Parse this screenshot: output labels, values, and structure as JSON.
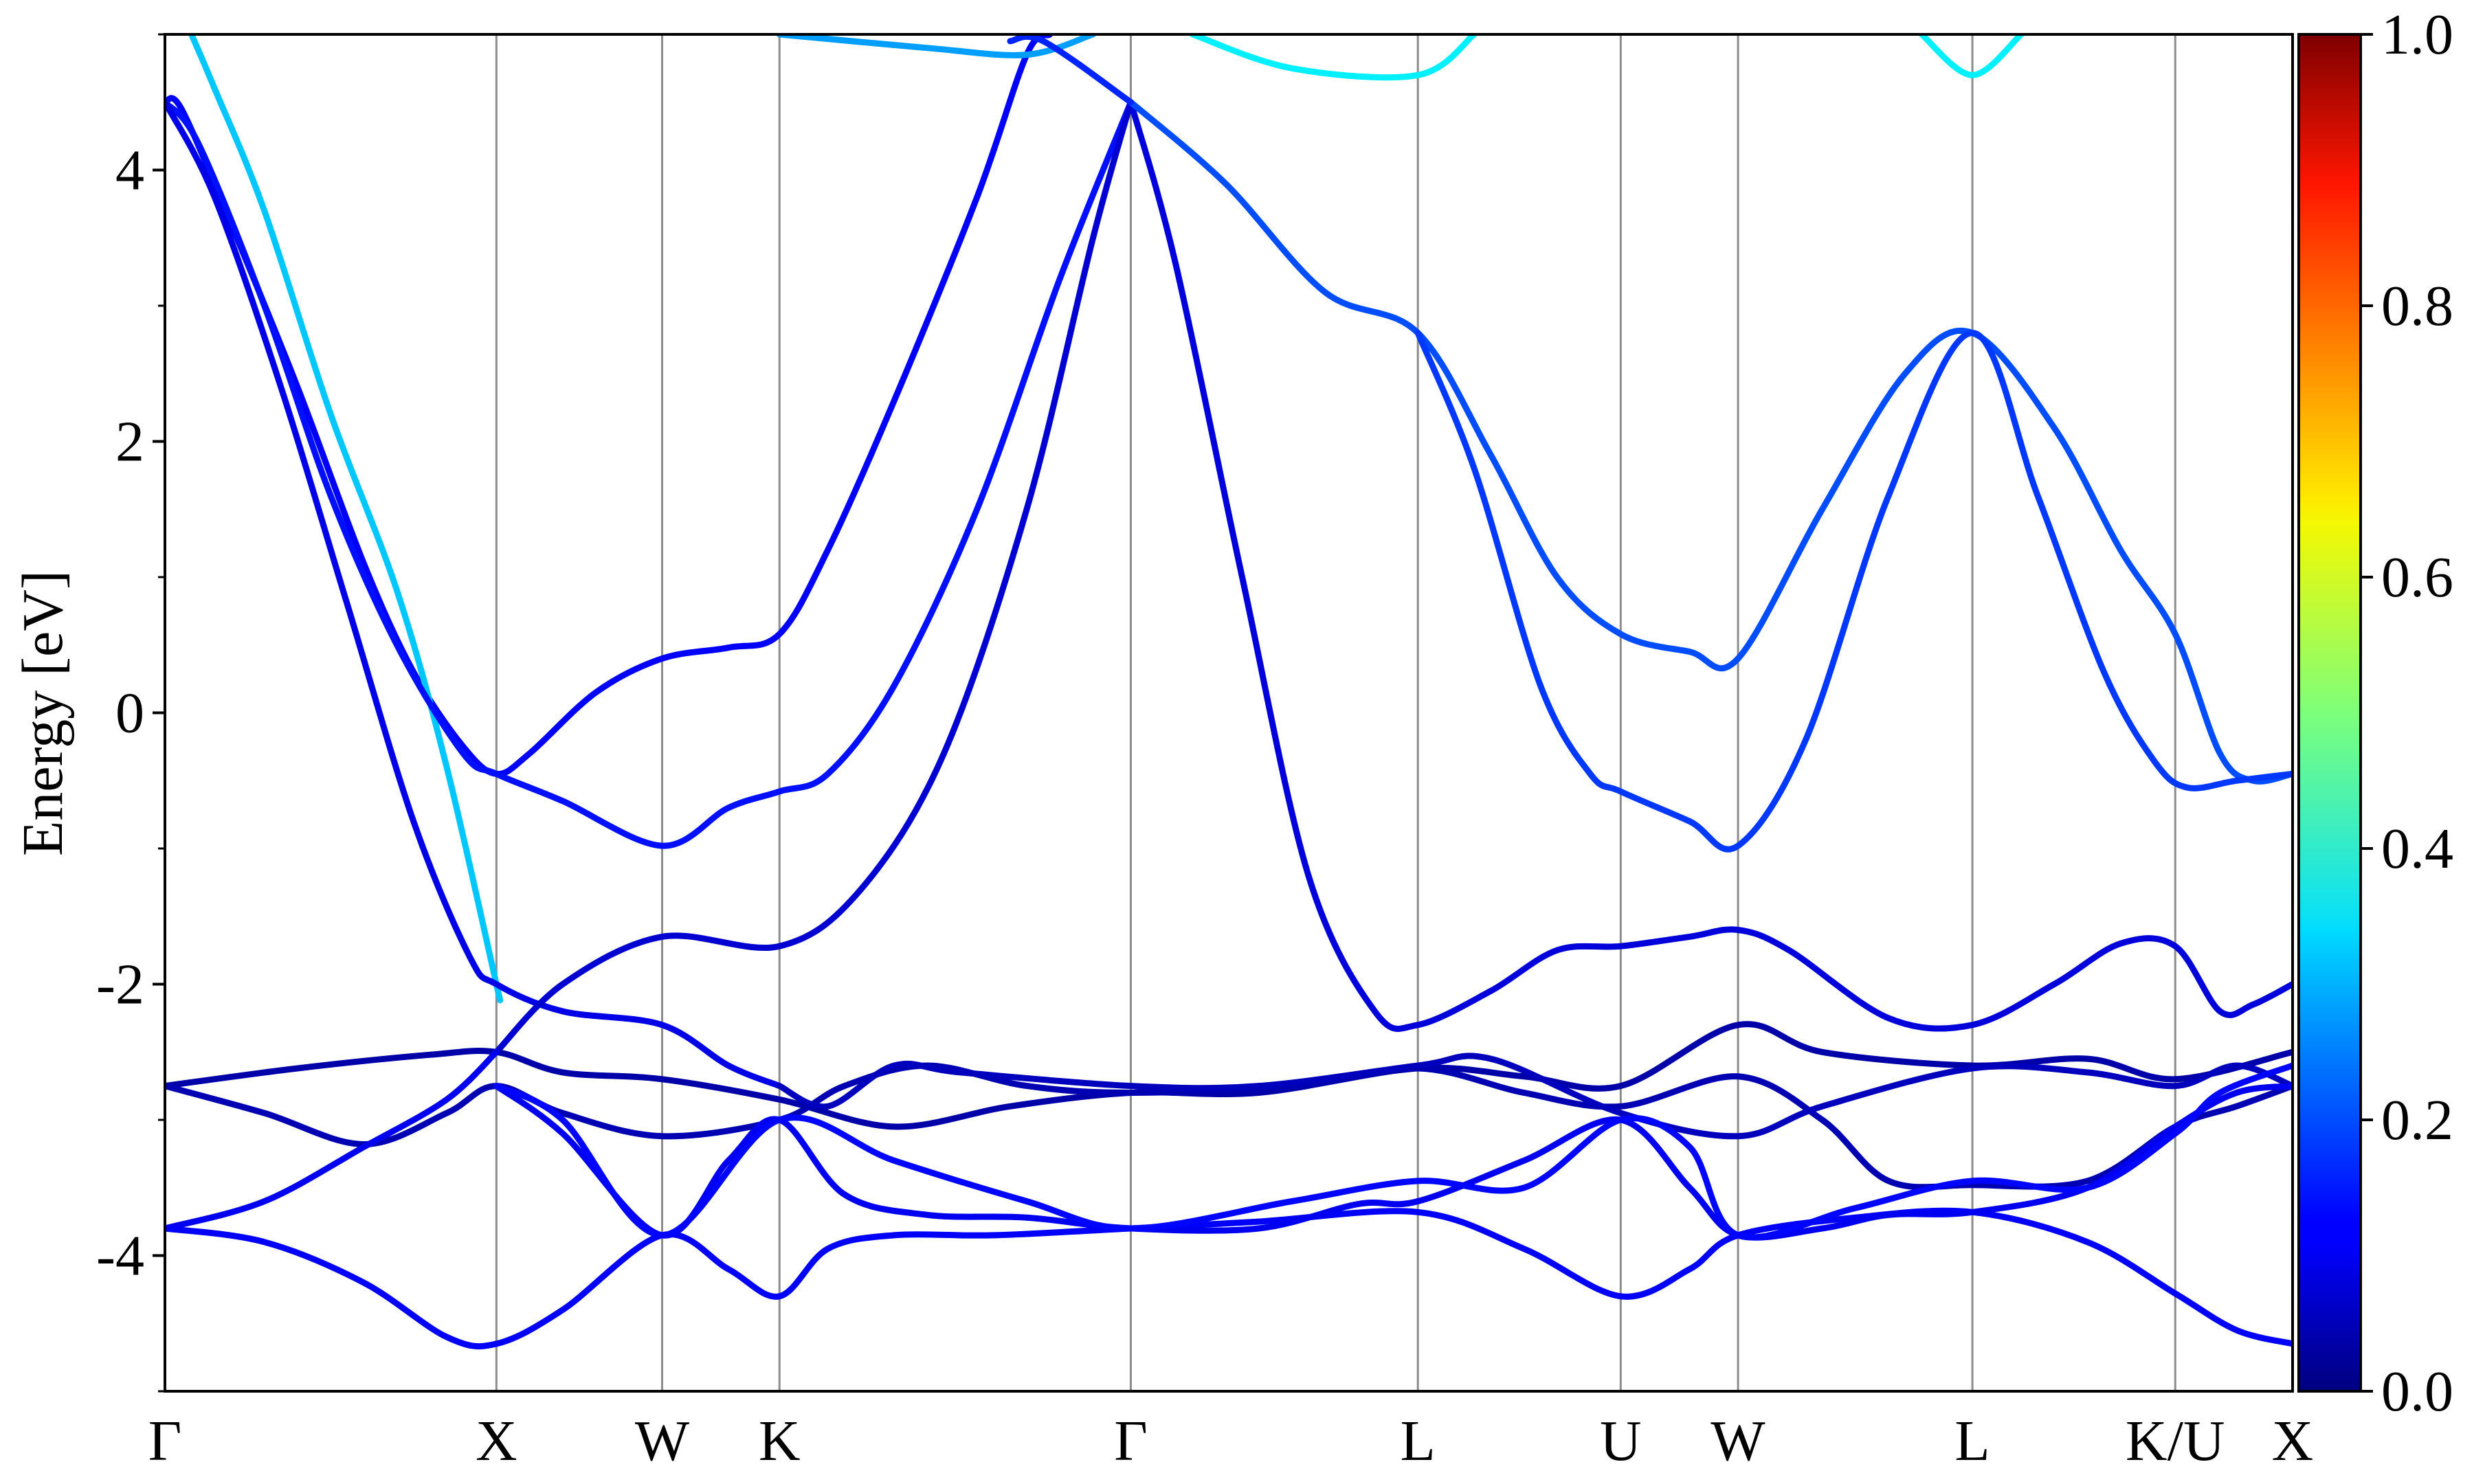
{
  "chart_data": {
    "type": "line",
    "title": "",
    "xlabel": "",
    "ylabel": "Energy [eV]",
    "ylim": [
      -5,
      5
    ],
    "yticks": [
      -4,
      -2,
      0,
      2,
      4
    ],
    "ytick_labels": [
      "-4",
      "-2",
      "0",
      "2",
      "4"
    ],
    "grid": "vertical lines at high-symmetry points",
    "legend": "none",
    "high_symmetry_points": [
      {
        "label": "Γ",
        "x": 0.0
      },
      {
        "label": "X",
        "x": 1.0
      },
      {
        "label": "W",
        "x": 1.5
      },
      {
        "label": "K",
        "x": 1.854
      },
      {
        "label": "Γ",
        "x": 2.914
      },
      {
        "label": "L",
        "x": 3.78
      },
      {
        "label": "U",
        "x": 4.392
      },
      {
        "label": "W",
        "x": 4.746
      },
      {
        "label": "L",
        "x": 5.453
      },
      {
        "label": "K/U",
        "x": 6.065
      },
      {
        "label": "X",
        "x": 6.419
      }
    ],
    "colorbar": {
      "colormap": "jet",
      "range": [
        0.0,
        1.0
      ],
      "ticks": [
        0.0,
        0.2,
        0.4,
        0.6,
        0.8,
        1.0
      ],
      "tick_labels": [
        "0.0",
        "0.2",
        "0.4",
        "0.6",
        "0.8",
        "1.0"
      ]
    },
    "series": [
      {
        "weight": 0.12,
        "points": [
          [
            0.0,
            4.5
          ],
          [
            0.05,
            4.45
          ],
          [
            0.2,
            3.6
          ],
          [
            0.4,
            2.4
          ],
          [
            0.6,
            1.1
          ],
          [
            0.75,
            0.3
          ],
          [
            0.9,
            -0.25
          ],
          [
            1.0,
            -0.45
          ],
          [
            1.1,
            -0.3
          ],
          [
            1.3,
            0.15
          ],
          [
            1.5,
            0.4
          ],
          [
            1.7,
            0.48
          ],
          [
            1.854,
            0.58
          ],
          [
            2.0,
            1.2
          ],
          [
            2.2,
            2.3
          ],
          [
            2.45,
            3.8
          ],
          [
            2.6,
            4.85
          ],
          [
            2.67,
            5.0
          ]
        ]
      },
      {
        "weight": 0.32,
        "points": [
          [
            0.08,
            5.0
          ],
          [
            0.15,
            4.6
          ],
          [
            0.3,
            3.7
          ],
          [
            0.5,
            2.2
          ],
          [
            0.7,
            0.9
          ],
          [
            0.85,
            -0.4
          ],
          [
            1.0,
            -2.0
          ],
          [
            1.0,
            -2.0
          ]
        ]
      },
      {
        "weight": 0.14,
        "points": [
          [
            0.0,
            4.5
          ],
          [
            0.1,
            4.2
          ],
          [
            0.3,
            3.0
          ],
          [
            0.5,
            1.6
          ],
          [
            0.7,
            0.5
          ],
          [
            0.9,
            -0.3
          ],
          [
            1.0,
            -0.45
          ],
          [
            1.2,
            -0.65
          ],
          [
            1.5,
            -0.98
          ],
          [
            1.7,
            -0.7
          ],
          [
            1.854,
            -0.58
          ],
          [
            2.0,
            -0.45
          ],
          [
            2.2,
            0.2
          ],
          [
            2.45,
            1.5
          ],
          [
            2.7,
            3.2
          ],
          [
            2.914,
            4.5
          ]
        ]
      },
      {
        "weight": 0.1,
        "points": [
          [
            0.0,
            4.5
          ],
          [
            0.15,
            3.8
          ],
          [
            0.35,
            2.4
          ],
          [
            0.55,
            0.8
          ],
          [
            0.75,
            -0.8
          ],
          [
            0.92,
            -1.8
          ],
          [
            1.0,
            -2.0
          ],
          [
            1.2,
            -2.2
          ],
          [
            1.5,
            -2.3
          ],
          [
            1.7,
            -2.6
          ],
          [
            1.854,
            -2.75
          ]
        ]
      },
      {
        "weight": 0.08,
        "points": [
          [
            1.0,
            -2.5
          ],
          [
            1.2,
            -2.0
          ],
          [
            1.5,
            -1.65
          ],
          [
            1.854,
            -1.72
          ],
          [
            2.1,
            -1.3
          ],
          [
            2.35,
            -0.3
          ],
          [
            2.6,
            1.5
          ],
          [
            2.8,
            3.5
          ],
          [
            2.914,
            4.5
          ]
        ]
      },
      {
        "weight": 0.09,
        "points": [
          [
            2.914,
            4.5
          ],
          [
            3.05,
            3.3
          ],
          [
            3.25,
            1.0
          ],
          [
            3.45,
            -1.2
          ],
          [
            3.65,
            -2.2
          ],
          [
            3.78,
            -2.3
          ],
          [
            4.0,
            -2.05
          ],
          [
            4.2,
            -1.75
          ],
          [
            4.392,
            -1.72
          ],
          [
            4.6,
            -1.65
          ],
          [
            4.746,
            -1.6
          ],
          [
            4.9,
            -1.75
          ],
          [
            5.2,
            -2.25
          ],
          [
            5.453,
            -2.3
          ],
          [
            5.7,
            -2.0
          ],
          [
            5.9,
            -1.7
          ],
          [
            6.065,
            -1.72
          ],
          [
            6.2,
            -2.2
          ],
          [
            6.3,
            -2.15
          ],
          [
            6.419,
            -2.0
          ]
        ]
      },
      {
        "weight": 0.2,
        "points": [
          [
            2.914,
            4.5
          ],
          [
            3.2,
            3.9
          ],
          [
            3.5,
            3.1
          ],
          [
            3.78,
            2.8
          ],
          [
            4.0,
            1.9
          ],
          [
            4.2,
            1.0
          ],
          [
            4.392,
            0.58
          ],
          [
            4.6,
            0.45
          ],
          [
            4.746,
            0.4
          ],
          [
            5.0,
            1.5
          ],
          [
            5.25,
            2.5
          ],
          [
            5.453,
            2.8
          ],
          [
            5.7,
            2.1
          ],
          [
            5.9,
            1.2
          ],
          [
            6.065,
            0.58
          ],
          [
            6.2,
            -0.3
          ],
          [
            6.3,
            -0.5
          ],
          [
            6.419,
            -0.45
          ]
        ]
      },
      {
        "weight": 0.18,
        "points": [
          [
            3.78,
            2.8
          ],
          [
            3.95,
            1.8
          ],
          [
            4.15,
            0.2
          ],
          [
            4.3,
            -0.45
          ],
          [
            4.392,
            -0.58
          ],
          [
            4.6,
            -0.8
          ],
          [
            4.746,
            -0.98
          ],
          [
            4.95,
            -0.2
          ],
          [
            5.2,
            1.6
          ],
          [
            5.453,
            2.8
          ],
          [
            5.65,
            1.6
          ],
          [
            5.85,
            0.3
          ],
          [
            6.0,
            -0.35
          ],
          [
            6.1,
            -0.55
          ],
          [
            6.25,
            -0.5
          ],
          [
            6.419,
            -0.45
          ]
        ]
      },
      {
        "weight": 0.04,
        "points": [
          [
            0.0,
            -2.75
          ],
          [
            0.4,
            -2.62
          ],
          [
            0.8,
            -2.52
          ],
          [
            1.0,
            -2.5
          ],
          [
            1.2,
            -2.65
          ],
          [
            1.5,
            -2.7
          ],
          [
            1.854,
            -2.85
          ],
          [
            2.2,
            -3.05
          ],
          [
            2.55,
            -2.9
          ],
          [
            2.914,
            -2.8
          ],
          [
            3.3,
            -2.8
          ],
          [
            3.78,
            -2.62
          ],
          [
            4.1,
            -2.68
          ],
          [
            4.392,
            -2.75
          ],
          [
            4.746,
            -2.3
          ],
          [
            5.0,
            -2.5
          ],
          [
            5.453,
            -2.6
          ],
          [
            5.8,
            -2.55
          ],
          [
            6.065,
            -2.7
          ],
          [
            6.419,
            -2.5
          ]
        ]
      },
      {
        "weight": 0.05,
        "points": [
          [
            0.0,
            -2.75
          ],
          [
            0.3,
            -2.95
          ],
          [
            0.6,
            -3.18
          ],
          [
            0.85,
            -2.95
          ],
          [
            1.0,
            -2.75
          ],
          [
            1.2,
            -2.95
          ],
          [
            1.5,
            -3.12
          ],
          [
            1.854,
            -3.0
          ],
          [
            2.05,
            -2.75
          ],
          [
            2.3,
            -2.6
          ],
          [
            2.6,
            -2.75
          ],
          [
            2.914,
            -2.8
          ],
          [
            3.4,
            -2.75
          ],
          [
            3.78,
            -2.62
          ],
          [
            4.1,
            -2.8
          ],
          [
            4.392,
            -2.9
          ],
          [
            4.746,
            -2.68
          ],
          [
            5.0,
            -3.0
          ],
          [
            5.2,
            -3.45
          ],
          [
            5.453,
            -3.48
          ],
          [
            5.8,
            -3.45
          ],
          [
            6.065,
            -3.05
          ],
          [
            6.25,
            -2.9
          ],
          [
            6.419,
            -2.75
          ]
        ]
      },
      {
        "weight": 0.06,
        "points": [
          [
            1.854,
            -2.75
          ],
          [
            2.0,
            -2.9
          ],
          [
            2.2,
            -2.6
          ],
          [
            2.4,
            -2.65
          ],
          [
            2.914,
            -2.75
          ],
          [
            3.3,
            -2.75
          ],
          [
            3.78,
            -2.6
          ],
          [
            4.0,
            -2.55
          ],
          [
            4.392,
            -2.95
          ],
          [
            4.746,
            -3.12
          ],
          [
            5.0,
            -2.9
          ],
          [
            5.453,
            -2.62
          ],
          [
            5.8,
            -2.65
          ],
          [
            6.065,
            -2.75
          ],
          [
            6.25,
            -2.6
          ],
          [
            6.419,
            -2.75
          ]
        ]
      },
      {
        "weight": 0.11,
        "points": [
          [
            0.0,
            -3.8
          ],
          [
            0.3,
            -3.6
          ],
          [
            0.6,
            -3.2
          ],
          [
            0.85,
            -2.85
          ],
          [
            1.0,
            -2.5
          ]
        ]
      },
      {
        "weight": 0.12,
        "points": [
          [
            0.0,
            -3.8
          ],
          [
            0.3,
            -3.9
          ],
          [
            0.6,
            -4.2
          ],
          [
            0.85,
            -4.6
          ],
          [
            1.0,
            -4.65
          ],
          [
            1.2,
            -4.4
          ],
          [
            1.5,
            -3.85
          ],
          [
            1.7,
            -4.1
          ],
          [
            1.854,
            -4.3
          ],
          [
            2.0,
            -3.95
          ],
          [
            2.2,
            -3.85
          ],
          [
            2.5,
            -3.85
          ],
          [
            2.914,
            -3.8
          ],
          [
            3.3,
            -3.75
          ],
          [
            3.78,
            -3.68
          ],
          [
            4.1,
            -3.95
          ],
          [
            4.392,
            -4.3
          ],
          [
            4.6,
            -4.1
          ],
          [
            4.746,
            -3.85
          ],
          [
            5.1,
            -3.72
          ],
          [
            5.453,
            -3.68
          ],
          [
            5.8,
            -3.9
          ],
          [
            6.065,
            -4.28
          ],
          [
            6.25,
            -4.55
          ],
          [
            6.419,
            -4.65
          ]
        ]
      },
      {
        "weight": 0.11,
        "points": [
          [
            1.0,
            -2.75
          ],
          [
            1.2,
            -3.1
          ],
          [
            1.5,
            -3.85
          ],
          [
            1.7,
            -3.3
          ],
          [
            1.854,
            -3.0
          ],
          [
            2.05,
            -3.55
          ],
          [
            2.3,
            -3.7
          ],
          [
            2.6,
            -3.72
          ],
          [
            2.914,
            -3.8
          ],
          [
            3.3,
            -3.8
          ],
          [
            3.6,
            -3.62
          ],
          [
            3.78,
            -3.6
          ],
          [
            4.1,
            -3.3
          ],
          [
            4.392,
            -3.0
          ],
          [
            4.6,
            -3.5
          ],
          [
            4.746,
            -3.85
          ],
          [
            5.0,
            -3.8
          ],
          [
            5.2,
            -3.7
          ],
          [
            5.453,
            -3.68
          ],
          [
            5.8,
            -3.5
          ],
          [
            6.065,
            -3.05
          ],
          [
            6.25,
            -2.8
          ],
          [
            6.419,
            -2.75
          ]
        ]
      },
      {
        "weight": 0.13,
        "points": [
          [
            1.0,
            -2.75
          ],
          [
            1.2,
            -3.0
          ],
          [
            1.5,
            -3.85
          ],
          [
            1.854,
            -3.0
          ],
          [
            2.2,
            -3.3
          ],
          [
            2.6,
            -3.6
          ],
          [
            2.914,
            -3.8
          ],
          [
            3.4,
            -3.6
          ],
          [
            3.78,
            -3.45
          ],
          [
            4.1,
            -3.5
          ],
          [
            4.392,
            -3.0
          ],
          [
            4.6,
            -3.2
          ],
          [
            4.746,
            -3.85
          ],
          [
            5.1,
            -3.65
          ],
          [
            5.453,
            -3.45
          ],
          [
            5.8,
            -3.5
          ],
          [
            6.065,
            -3.1
          ],
          [
            6.2,
            -2.8
          ],
          [
            6.419,
            -2.6
          ]
        ]
      },
      {
        "weight": 0.28,
        "points": [
          [
            1.854,
            5.0
          ],
          [
            2.3,
            4.9
          ],
          [
            2.6,
            4.85
          ],
          [
            2.8,
            5.0
          ]
        ]
      },
      {
        "weight": 0.36,
        "points": [
          [
            3.1,
            5.0
          ],
          [
            3.4,
            4.75
          ],
          [
            3.78,
            4.7
          ],
          [
            3.95,
            5.0
          ]
        ]
      },
      {
        "weight": 0.36,
        "points": [
          [
            5.3,
            5.0
          ],
          [
            5.453,
            4.7
          ],
          [
            5.6,
            5.0
          ]
        ]
      },
      {
        "weight": 0.16,
        "points": [
          [
            2.55,
            4.95
          ],
          [
            2.65,
            4.95
          ],
          [
            2.914,
            4.5
          ]
        ]
      }
    ]
  }
}
